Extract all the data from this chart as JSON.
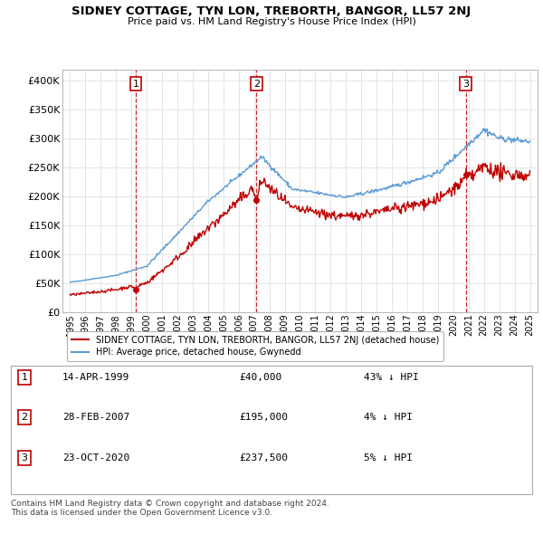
{
  "title": "SIDNEY COTTAGE, TYN LON, TREBORTH, BANGOR, LL57 2NJ",
  "subtitle": "Price paid vs. HM Land Registry's House Price Index (HPI)",
  "ylim": [
    0,
    420000
  ],
  "yticks": [
    0,
    50000,
    100000,
    150000,
    200000,
    250000,
    300000,
    350000,
    400000
  ],
  "ytick_labels": [
    "£0",
    "£50K",
    "£100K",
    "£150K",
    "£200K",
    "£250K",
    "£300K",
    "£350K",
    "£400K"
  ],
  "sale_dates": [
    1999.29,
    2007.16,
    2020.81
  ],
  "sale_prices": [
    40000,
    195000,
    237500
  ],
  "sale_labels": [
    "1",
    "2",
    "3"
  ],
  "hpi_color": "#5b9bd5",
  "sale_line_color": "#c00000",
  "sale_marker_color": "#c00000",
  "vline_color": "#c00000",
  "background_color": "#ffffff",
  "grid_color": "#e0e0e0",
  "legend_entries": [
    "SIDNEY COTTAGE, TYN LON, TREBORTH, BANGOR, LL57 2NJ (detached house)",
    "HPI: Average price, detached house, Gwynedd"
  ],
  "table_data": [
    [
      "1",
      "14-APR-1999",
      "£40,000",
      "43% ↓ HPI"
    ],
    [
      "2",
      "28-FEB-2007",
      "£195,000",
      "4% ↓ HPI"
    ],
    [
      "3",
      "23-OCT-2020",
      "£237,500",
      "5% ↓ HPI"
    ]
  ],
  "footnote": "Contains HM Land Registry data © Crown copyright and database right 2024.\nThis data is licensed under the Open Government Licence v3.0.",
  "xlim": [
    1994.5,
    2025.5
  ],
  "xtick_years": [
    1995,
    1996,
    1997,
    1998,
    1999,
    2000,
    2001,
    2002,
    2003,
    2004,
    2005,
    2006,
    2007,
    2008,
    2009,
    2010,
    2011,
    2012,
    2013,
    2014,
    2015,
    2016,
    2017,
    2018,
    2019,
    2020,
    2021,
    2022,
    2023,
    2024,
    2025
  ]
}
